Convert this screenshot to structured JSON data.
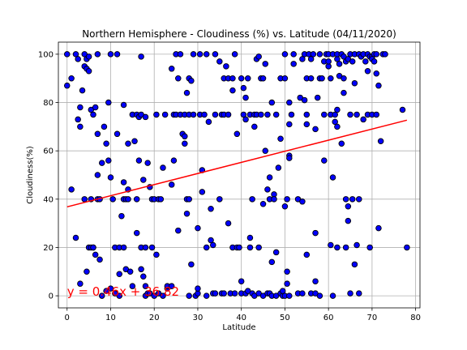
{
  "chart_data": {
    "type": "scatter",
    "title": "Northern Hemisphere - Cloudiness (%) vs. Latitude (04/11/2020)",
    "xlabel": "Latitude",
    "ylabel": "Cloudiness(%)",
    "xlim": [
      -2,
      81
    ],
    "ylim": [
      -5,
      105
    ],
    "xticks": [
      0,
      10,
      20,
      30,
      40,
      50,
      60,
      70,
      80
    ],
    "yticks": [
      0,
      20,
      40,
      60,
      80,
      100
    ],
    "grid": true,
    "marker_color": "#0000ff",
    "marker_edge": "#000000",
    "regression": {
      "slope": 0.46,
      "intercept": 36.82,
      "x_range": [
        0,
        78
      ],
      "color": "#ff0000",
      "equation": "y = 0.46x + 36.82",
      "equation_at": [
        0,
        0
      ]
    },
    "points": [
      [
        0,
        87
      ],
      [
        0,
        100
      ],
      [
        1,
        90
      ],
      [
        1,
        44
      ],
      [
        2,
        24
      ],
      [
        2,
        100
      ],
      [
        2.5,
        73
      ],
      [
        2.5,
        98
      ],
      [
        3,
        78
      ],
      [
        3,
        70
      ],
      [
        3,
        5
      ],
      [
        3.5,
        85
      ],
      [
        4,
        100
      ],
      [
        4,
        95
      ],
      [
        4,
        40
      ],
      [
        4.5,
        94
      ],
      [
        4.5,
        10
      ],
      [
        4.5,
        98
      ],
      [
        5,
        93
      ],
      [
        5,
        99
      ],
      [
        5,
        20
      ],
      [
        5.5,
        77
      ],
      [
        5.5,
        40
      ],
      [
        5.5,
        20
      ],
      [
        6,
        75
      ],
      [
        6,
        20
      ],
      [
        6,
        20
      ],
      [
        6.5,
        78
      ],
      [
        6.5,
        17
      ],
      [
        7,
        100
      ],
      [
        7,
        67
      ],
      [
        7,
        40
      ],
      [
        7,
        50
      ],
      [
        7.5,
        40
      ],
      [
        7.5,
        15
      ],
      [
        8,
        55
      ],
      [
        8,
        0
      ],
      [
        8.5,
        70
      ],
      [
        9,
        63
      ],
      [
        9,
        2
      ],
      [
        9.5,
        80
      ],
      [
        9.5,
        56
      ],
      [
        10,
        49
      ],
      [
        10,
        100
      ],
      [
        10,
        3
      ],
      [
        10.5,
        40
      ],
      [
        11,
        20
      ],
      [
        11,
        1
      ],
      [
        11.5,
        67
      ],
      [
        11.5,
        100
      ],
      [
        12,
        20
      ],
      [
        12,
        9
      ],
      [
        12,
        0
      ],
      [
        12.5,
        33
      ],
      [
        13,
        40
      ],
      [
        13,
        79
      ],
      [
        13,
        47
      ],
      [
        13,
        20
      ],
      [
        13.5,
        11
      ],
      [
        13.5,
        40
      ],
      [
        14,
        44
      ],
      [
        14,
        63
      ],
      [
        14,
        40
      ],
      [
        14.5,
        10
      ],
      [
        15,
        4
      ],
      [
        15,
        75
      ],
      [
        15.5,
        64
      ],
      [
        16,
        40
      ],
      [
        16,
        26
      ],
      [
        16,
        75
      ],
      [
        16.5,
        56
      ],
      [
        16.5,
        74
      ],
      [
        17,
        11
      ],
      [
        17,
        20
      ],
      [
        17,
        75
      ],
      [
        17,
        99
      ],
      [
        17.5,
        8
      ],
      [
        17.5,
        48
      ],
      [
        18,
        20
      ],
      [
        18,
        4
      ],
      [
        18,
        74
      ],
      [
        18,
        0
      ],
      [
        18.5,
        1
      ],
      [
        18.5,
        55
      ],
      [
        19,
        45
      ],
      [
        19,
        1
      ],
      [
        19.5,
        20
      ],
      [
        19.5,
        40
      ],
      [
        20,
        40
      ],
      [
        20,
        0
      ],
      [
        20.5,
        17
      ],
      [
        20.5,
        75
      ],
      [
        21,
        1
      ],
      [
        21,
        40
      ],
      [
        21.5,
        40
      ],
      [
        22,
        53
      ],
      [
        22,
        0
      ],
      [
        22.5,
        75
      ],
      [
        23,
        3
      ],
      [
        23,
        4
      ],
      [
        24,
        4
      ],
      [
        24,
        46
      ],
      [
        24,
        94
      ],
      [
        24.5,
        56
      ],
      [
        24.5,
        75
      ],
      [
        25,
        75
      ],
      [
        25,
        100
      ],
      [
        25.5,
        90
      ],
      [
        25.5,
        27
      ],
      [
        26,
        75
      ],
      [
        26,
        100
      ],
      [
        26.5,
        67
      ],
      [
        27,
        63
      ],
      [
        27,
        75
      ],
      [
        27,
        66
      ],
      [
        27.5,
        84
      ],
      [
        27.5,
        34
      ],
      [
        27.5,
        40
      ],
      [
        28,
        40
      ],
      [
        28,
        90
      ],
      [
        28,
        75
      ],
      [
        28,
        0
      ],
      [
        28.5,
        13
      ],
      [
        28.5,
        89
      ],
      [
        29,
        75
      ],
      [
        29,
        100
      ],
      [
        29.5,
        0
      ],
      [
        30,
        1
      ],
      [
        30,
        3
      ],
      [
        30,
        28
      ],
      [
        30.5,
        100
      ],
      [
        30.5,
        75
      ],
      [
        31,
        52
      ],
      [
        31,
        43
      ],
      [
        31.5,
        75
      ],
      [
        32,
        100
      ],
      [
        32,
        0
      ],
      [
        32,
        20
      ],
      [
        32.5,
        72
      ],
      [
        33,
        23
      ],
      [
        33,
        36
      ],
      [
        33.5,
        21
      ],
      [
        33.5,
        1
      ],
      [
        34,
        75
      ],
      [
        34,
        100
      ],
      [
        34,
        1
      ],
      [
        35,
        97
      ],
      [
        35,
        40
      ],
      [
        35.5,
        1
      ],
      [
        35.5,
        75
      ],
      [
        36,
        90
      ],
      [
        36,
        75
      ],
      [
        36,
        1
      ],
      [
        36.5,
        95
      ],
      [
        37,
        30
      ],
      [
        37,
        75
      ],
      [
        37,
        90
      ],
      [
        37.5,
        1
      ],
      [
        38,
        85
      ],
      [
        38,
        90
      ],
      [
        38,
        20
      ],
      [
        38.5,
        100
      ],
      [
        38.5,
        1
      ],
      [
        39,
        67
      ],
      [
        39,
        20
      ],
      [
        39.5,
        20
      ],
      [
        40,
        90
      ],
      [
        40,
        6
      ],
      [
        40,
        1
      ],
      [
        40.5,
        86
      ],
      [
        40.5,
        75
      ],
      [
        41,
        82
      ],
      [
        41,
        73
      ],
      [
        41,
        1
      ],
      [
        41.5,
        90
      ],
      [
        41.5,
        2
      ],
      [
        42,
        20
      ],
      [
        42,
        24
      ],
      [
        42,
        75
      ],
      [
        42.5,
        40
      ],
      [
        42.5,
        1
      ],
      [
        43,
        75
      ],
      [
        43,
        70
      ],
      [
        43,
        0
      ],
      [
        43.5,
        98
      ],
      [
        43.5,
        75
      ],
      [
        44,
        99
      ],
      [
        44,
        1
      ],
      [
        44,
        20
      ],
      [
        44.5,
        90
      ],
      [
        44.5,
        75
      ],
      [
        45,
        90
      ],
      [
        45,
        38
      ],
      [
        45,
        0
      ],
      [
        45.5,
        60
      ],
      [
        45.5,
        96
      ],
      [
        46,
        75
      ],
      [
        46,
        44
      ],
      [
        46,
        1
      ],
      [
        46.5,
        49
      ],
      [
        46.5,
        40
      ],
      [
        46.5,
        1
      ],
      [
        47,
        80
      ],
      [
        47,
        14
      ],
      [
        47,
        0
      ],
      [
        47.5,
        42
      ],
      [
        47.5,
        40
      ],
      [
        48,
        75
      ],
      [
        48,
        18
      ],
      [
        48,
        0
      ],
      [
        48.5,
        53
      ],
      [
        49,
        90
      ],
      [
        49,
        65
      ],
      [
        49,
        1
      ],
      [
        49.5,
        0
      ],
      [
        49.5,
        2
      ],
      [
        50,
        37
      ],
      [
        50,
        90
      ],
      [
        50,
        100
      ],
      [
        50,
        0
      ],
      [
        50.5,
        40
      ],
      [
        50.5,
        10
      ],
      [
        50.5,
        5
      ],
      [
        51,
        80
      ],
      [
        51,
        71
      ],
      [
        51,
        58
      ],
      [
        51,
        0
      ],
      [
        51,
        57
      ],
      [
        51.5,
        75
      ],
      [
        52,
        96
      ],
      [
        52,
        100
      ],
      [
        53,
        40
      ],
      [
        53,
        1
      ],
      [
        53.5,
        82
      ],
      [
        54,
        39
      ],
      [
        54,
        98
      ],
      [
        54,
        1
      ],
      [
        54.5,
        81
      ],
      [
        54.5,
        100
      ],
      [
        55,
        17
      ],
      [
        55,
        90
      ],
      [
        55,
        75
      ],
      [
        55,
        71
      ],
      [
        55.5,
        100
      ],
      [
        56,
        98
      ],
      [
        56,
        90
      ],
      [
        56,
        1
      ],
      [
        56.5,
        100
      ],
      [
        57,
        1
      ],
      [
        57,
        6
      ],
      [
        57,
        26
      ],
      [
        57,
        69
      ],
      [
        57.5,
        82
      ],
      [
        58,
        90
      ],
      [
        58,
        100
      ],
      [
        58,
        0
      ],
      [
        58.5,
        90
      ],
      [
        59,
        75
      ],
      [
        59,
        97
      ],
      [
        59,
        56
      ],
      [
        59.5,
        100
      ],
      [
        60,
        100
      ],
      [
        60,
        95
      ],
      [
        60,
        97
      ],
      [
        60.5,
        21
      ],
      [
        60.5,
        90
      ],
      [
        60.5,
        75
      ],
      [
        61,
        100
      ],
      [
        61,
        0
      ],
      [
        61,
        49
      ],
      [
        61.5,
        72
      ],
      [
        61.5,
        75
      ],
      [
        62,
        77
      ],
      [
        62,
        98
      ],
      [
        62,
        100
      ],
      [
        62,
        70
      ],
      [
        62,
        20
      ],
      [
        62.5,
        96
      ],
      [
        62.5,
        91
      ],
      [
        63,
        63
      ],
      [
        63,
        100
      ],
      [
        63.5,
        99
      ],
      [
        63.5,
        84
      ],
      [
        63.5,
        90
      ],
      [
        64,
        97
      ],
      [
        64,
        20
      ],
      [
        64,
        40
      ],
      [
        64.5,
        98
      ],
      [
        64.5,
        31
      ],
      [
        64.5,
        37
      ],
      [
        65,
        75
      ],
      [
        65,
        1
      ],
      [
        65,
        100
      ],
      [
        65.5,
        40
      ],
      [
        65.5,
        97
      ],
      [
        66,
        88
      ],
      [
        66,
        13
      ],
      [
        66,
        100
      ],
      [
        66.5,
        21
      ],
      [
        66.5,
        75
      ],
      [
        67,
        100
      ],
      [
        67,
        40
      ],
      [
        67,
        1
      ],
      [
        67.5,
        99
      ],
      [
        68,
        73
      ],
      [
        68,
        100
      ],
      [
        68.5,
        97
      ],
      [
        69,
        100
      ],
      [
        69,
        75
      ],
      [
        69,
        93
      ],
      [
        69.5,
        20
      ],
      [
        69.5,
        99
      ],
      [
        70,
        75
      ],
      [
        70,
        99
      ],
      [
        70,
        98
      ],
      [
        70.5,
        100
      ],
      [
        70.5,
        97
      ],
      [
        71,
        92
      ],
      [
        71,
        75
      ],
      [
        71,
        100
      ],
      [
        71.5,
        87
      ],
      [
        71.5,
        28
      ],
      [
        72,
        64
      ],
      [
        72.5,
        100
      ],
      [
        73,
        100
      ],
      [
        77,
        77
      ],
      [
        78,
        20
      ]
    ]
  }
}
